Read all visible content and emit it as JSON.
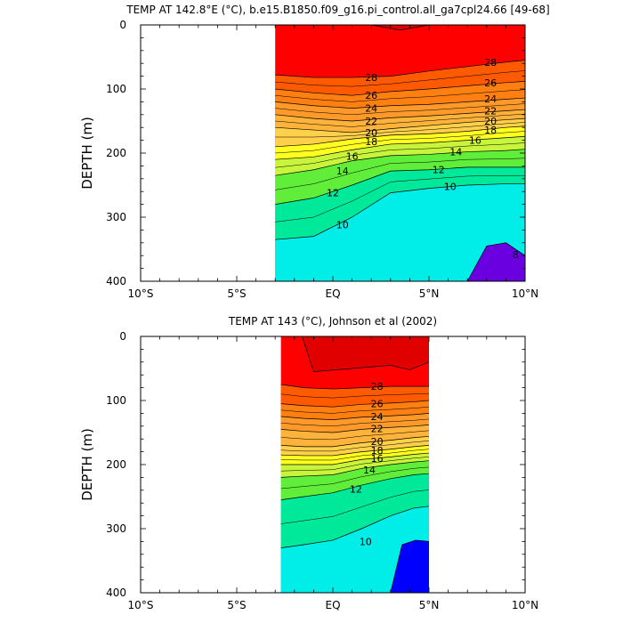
{
  "chart_data": [
    {
      "type": "contour",
      "title": "TEMP AT 142.8°E (°C), b.e15.B1850.f09_g16.pi_control.all_ga7cpl24.66 [49-68]",
      "ylabel": "DEPTH (m)",
      "xlabel": "",
      "x_ticks": [
        {
          "value": -10,
          "label": "10°S"
        },
        {
          "value": -5,
          "label": "5°S"
        },
        {
          "value": 0,
          "label": "EQ"
        },
        {
          "value": 5,
          "label": "5°N"
        },
        {
          "value": 10,
          "label": "10°N"
        }
      ],
      "y_ticks": [
        0,
        100,
        200,
        300,
        400
      ],
      "xlim": [
        -10,
        10
      ],
      "ylim": [
        0,
        400
      ],
      "y_reversed": true,
      "data_xrange": [
        -3.0,
        10.0
      ],
      "x": [
        -3.0,
        -1.0,
        1.0,
        3.0,
        5.0,
        7.0,
        9.0,
        10.0
      ],
      "isotherm_depths": [
        {
          "temp": 28,
          "depths": [
            78,
            82,
            82,
            80,
            72,
            65,
            58,
            55
          ]
        },
        {
          "temp": 26,
          "depths": [
            100,
            106,
            110,
            104,
            100,
            95,
            90,
            88
          ]
        },
        {
          "temp": 24,
          "depths": [
            120,
            126,
            130,
            126,
            124,
            120,
            116,
            114
          ]
        },
        {
          "temp": 22,
          "depths": [
            140,
            146,
            150,
            145,
            142,
            138,
            134,
            132
          ]
        },
        {
          "temp": 20,
          "depths": [
            160,
            164,
            168,
            162,
            157,
            152,
            148,
            146
          ]
        },
        {
          "temp": 18,
          "depths": [
            190,
            186,
            178,
            172,
            170,
            166,
            160,
            158
          ]
        },
        {
          "temp": 16,
          "depths": [
            210,
            206,
            195,
            186,
            184,
            180,
            176,
            174
          ]
        },
        {
          "temp": 14,
          "depths": [
            235,
            226,
            212,
            204,
            202,
            198,
            196,
            194
          ]
        },
        {
          "temp": 12,
          "depths": [
            280,
            270,
            250,
            228,
            226,
            222,
            222,
            222
          ]
        },
        {
          "temp": 10,
          "depths": [
            335,
            330,
            300,
            262,
            255,
            250,
            248,
            248
          ]
        }
      ],
      "cold_core_contour": {
        "temp": 8,
        "x": [
          7.0,
          8.0,
          9.0,
          10.0
        ],
        "depths": [
          400,
          345,
          340,
          360
        ]
      },
      "warm_pool_contour": {
        "temp": 30,
        "x": [
          2.0,
          3.5,
          5.0
        ],
        "depths": [
          0,
          8,
          0
        ]
      },
      "contour_labels": [
        {
          "temp": "28",
          "x": 2.0,
          "depth": 82
        },
        {
          "temp": "28",
          "x": 8.2,
          "depth": 58
        },
        {
          "temp": "26",
          "x": 2.0,
          "depth": 110
        },
        {
          "temp": "26",
          "x": 8.2,
          "depth": 90
        },
        {
          "temp": "24",
          "x": 2.0,
          "depth": 130
        },
        {
          "temp": "24",
          "x": 8.2,
          "depth": 115
        },
        {
          "temp": "22",
          "x": 2.0,
          "depth": 150
        },
        {
          "temp": "22",
          "x": 8.2,
          "depth": 134
        },
        {
          "temp": "20",
          "x": 2.0,
          "depth": 168
        },
        {
          "temp": "20",
          "x": 8.2,
          "depth": 150
        },
        {
          "temp": "18",
          "x": 2.0,
          "depth": 182
        },
        {
          "temp": "18",
          "x": 8.2,
          "depth": 164
        },
        {
          "temp": "16",
          "x": 1.0,
          "depth": 205
        },
        {
          "temp": "16",
          "x": 7.4,
          "depth": 180
        },
        {
          "temp": "14",
          "x": 0.5,
          "depth": 228
        },
        {
          "temp": "14",
          "x": 6.4,
          "depth": 198
        },
        {
          "temp": "12",
          "x": 0.0,
          "depth": 262
        },
        {
          "temp": "12",
          "x": 5.5,
          "depth": 226
        },
        {
          "temp": "10",
          "x": 0.5,
          "depth": 312
        },
        {
          "temp": "10",
          "x": 6.1,
          "depth": 252
        },
        {
          "temp": "8",
          "x": 9.5,
          "depth": 358
        }
      ]
    },
    {
      "type": "contour",
      "title": "TEMP AT 143 (°C), Johnson et al (2002)",
      "ylabel": "DEPTH (m)",
      "xlabel": "",
      "x_ticks": [
        {
          "value": -10,
          "label": "10°S"
        },
        {
          "value": -5,
          "label": "5°S"
        },
        {
          "value": 0,
          "label": "EQ"
        },
        {
          "value": 5,
          "label": "5°N"
        },
        {
          "value": 10,
          "label": "10°N"
        }
      ],
      "y_ticks": [
        0,
        100,
        200,
        300,
        400
      ],
      "xlim": [
        -10,
        10
      ],
      "ylim": [
        0,
        400
      ],
      "y_reversed": true,
      "data_xrange": [
        -2.7,
        5.0
      ],
      "x": [
        -2.7,
        -1.5,
        0.0,
        1.5,
        3.0,
        4.2,
        5.0
      ],
      "isotherm_depths": [
        {
          "temp": 28,
          "depths": [
            75,
            80,
            82,
            80,
            78,
            78,
            78
          ]
        },
        {
          "temp": 26,
          "depths": [
            105,
            108,
            110,
            106,
            104,
            102,
            100
          ]
        },
        {
          "temp": 24,
          "depths": [
            125,
            128,
            130,
            126,
            124,
            122,
            120
          ]
        },
        {
          "temp": 22,
          "depths": [
            145,
            148,
            150,
            145,
            142,
            140,
            138
          ]
        },
        {
          "temp": 20,
          "depths": [
            170,
            172,
            172,
            166,
            162,
            158,
            156
          ]
        },
        {
          "temp": 18,
          "depths": [
            185,
            186,
            186,
            180,
            176,
            172,
            170
          ]
        },
        {
          "temp": 16,
          "depths": [
            200,
            200,
            200,
            192,
            188,
            184,
            182
          ]
        },
        {
          "temp": 14,
          "depths": [
            220,
            218,
            216,
            206,
            200,
            196,
            194
          ]
        },
        {
          "temp": 12,
          "depths": [
            255,
            250,
            244,
            232,
            222,
            216,
            214
          ]
        },
        {
          "temp": 10,
          "depths": [
            330,
            325,
            318,
            300,
            280,
            268,
            265
          ]
        }
      ],
      "cold_core_contour": {
        "temp": 8,
        "x": [
          3.0,
          3.6,
          4.3,
          5.0
        ],
        "depths": [
          400,
          325,
          318,
          320
        ]
      },
      "warm_pool_contour": {
        "temp": 30,
        "x": [
          -1.6,
          -1.0,
          1.0,
          3.0,
          4.0,
          5.0
        ],
        "depths": [
          0,
          55,
          50,
          45,
          52,
          40
        ]
      },
      "contour_labels": [
        {
          "temp": "28",
          "x": 2.3,
          "depth": 78
        },
        {
          "temp": "26",
          "x": 2.3,
          "depth": 105
        },
        {
          "temp": "24",
          "x": 2.3,
          "depth": 125
        },
        {
          "temp": "22",
          "x": 2.3,
          "depth": 144
        },
        {
          "temp": "20",
          "x": 2.3,
          "depth": 164
        },
        {
          "temp": "18",
          "x": 2.3,
          "depth": 178
        },
        {
          "temp": "16",
          "x": 2.3,
          "depth": 190
        },
        {
          "temp": "14",
          "x": 1.9,
          "depth": 208
        },
        {
          "temp": "12",
          "x": 1.2,
          "depth": 238
        },
        {
          "temp": "10",
          "x": 1.7,
          "depth": 320
        }
      ]
    }
  ],
  "colors": {
    "surface_warm": "#ff0000",
    "warm_pool": "#e10000",
    "cold_core_model": "#6a00e0",
    "cold_core_obs": "#0000ff",
    "band_colors": [
      "#ff5a00",
      "#ff7f10",
      "#ff9a2a",
      "#ffb33a",
      "#ffd04a",
      "#ffff20",
      "#c8f53c",
      "#60ee3a",
      "#00e89a",
      "#00ede8",
      "#00c8ff",
      "#00a8ff",
      "#0072ef",
      "#0040e8"
    ]
  }
}
